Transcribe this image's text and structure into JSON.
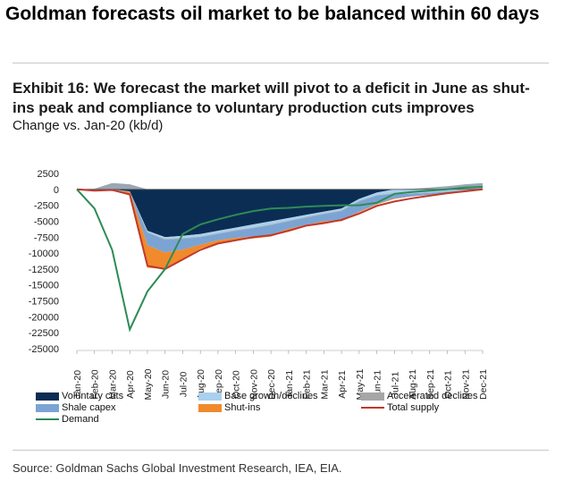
{
  "headline": "Goldman forecasts oil market to be balanced within 60 days",
  "exhibit_title": "Exhibit 16: We forecast the market will pivot to a deficit in June as shut-ins peak and compliance to voluntary production cuts improves",
  "exhibit_subtitle": "Change vs. Jan-20 (kb/d)",
  "source": "Source: Goldman Sachs Global Investment Research, IEA, EIA.",
  "legend": {
    "voluntary_cuts": "Voluntary cuts",
    "base_growth": "Base growth/declines",
    "accelerated_declines": "Accelerated declines",
    "shale_capex": "Shale capex",
    "shut_ins": "Shut-ins",
    "total_supply": "Total supply",
    "demand": "Demand"
  },
  "colors": {
    "voluntary_cuts": "#0b2d54",
    "base_growth": "#a9d0ee",
    "accelerated_declines": "#a6a6a6",
    "shale_capex": "#7ba4d4",
    "shut_ins": "#f08a2c",
    "total_supply": "#c0392b",
    "demand": "#2e8b57"
  },
  "chart_data": {
    "type": "area",
    "title": "Exhibit 16: We forecast the market will pivot to a deficit in June as shut-ins peak and compliance to voluntary production cuts improves",
    "ylabel": "Change vs. Jan-20 (kb/d)",
    "ylim": [
      -25000,
      2500
    ],
    "yticks": [
      2500,
      0,
      -2500,
      -5000,
      -7500,
      -10000,
      -12500,
      -15000,
      -17500,
      -20000,
      -22500,
      -25000
    ],
    "categories": [
      "Jan-20",
      "Feb-20",
      "Mar-20",
      "Apr-20",
      "May-20",
      "Jun-20",
      "Jul-20",
      "Aug-20",
      "Sep-20",
      "Oct-20",
      "Nov-20",
      "Dec-20",
      "Jan-21",
      "Feb-21",
      "Mar-21",
      "Apr-21",
      "May-21",
      "Jun-21",
      "Jul-21",
      "Aug-21",
      "Sep-21",
      "Oct-21",
      "Nov-21",
      "Dec-21"
    ],
    "stacked_series": [
      {
        "name": "Voluntary cuts",
        "values": [
          0,
          0,
          0,
          -300,
          -6500,
          -7500,
          -7300,
          -7000,
          -6500,
          -6000,
          -5500,
          -5000,
          -4500,
          -4000,
          -3500,
          -3000,
          -1500,
          -500,
          0,
          0,
          0,
          0,
          0,
          0
        ]
      },
      {
        "name": "Base growth/declines",
        "values": [
          0,
          0,
          0,
          0,
          -200,
          -300,
          -350,
          -400,
          -400,
          -400,
          -500,
          -500,
          -400,
          -350,
          -300,
          -300,
          -300,
          -400,
          -600,
          -600,
          -500,
          -300,
          -200,
          0
        ]
      },
      {
        "name": "Accelerated declines",
        "values": [
          0,
          -200,
          -100,
          -100,
          -100,
          -100,
          -100,
          -100,
          -100,
          -100,
          -100,
          -100,
          -100,
          -100,
          -100,
          -100,
          -100,
          -100,
          -100,
          -100,
          -50,
          -50,
          0,
          0
        ]
      },
      {
        "name": "Shale capex",
        "values": [
          0,
          0,
          0,
          0,
          -2000,
          -2000,
          -1700,
          -1200,
          -1000,
          -1100,
          -1300,
          -1500,
          -1200,
          -1100,
          -1100,
          -1400,
          -1600,
          -1300,
          -700,
          -400,
          -300,
          -200,
          -100,
          0
        ]
      },
      {
        "name": "Shut-ins",
        "values": [
          0,
          0,
          0,
          -500,
          -3500,
          -2600,
          -1500,
          -600,
          -500,
          -400,
          -300,
          -300,
          -300,
          -200,
          -200,
          -200,
          -100,
          -100,
          -100,
          0,
          0,
          0,
          0,
          0
        ]
      }
    ],
    "positive_series": {
      "name": "Accelerated declines (positive)",
      "values": [
        0,
        100,
        1000,
        800,
        0,
        0,
        0,
        0,
        0,
        0,
        0,
        0,
        0,
        0,
        0,
        0,
        0,
        0,
        0,
        100,
        300,
        500,
        800,
        1000
      ]
    },
    "series": [
      {
        "name": "Total supply",
        "values": [
          0,
          -200,
          -100,
          -800,
          -12000,
          -12500,
          -11000,
          -9500,
          -8500,
          -8000,
          -7500,
          -7200,
          -6500,
          -5700,
          -5300,
          -4800,
          -3800,
          -2600,
          -1900,
          -1400,
          -1000,
          -600,
          -300,
          0
        ]
      },
      {
        "name": "Demand",
        "values": [
          0,
          -3000,
          -9500,
          -22000,
          -16000,
          -12500,
          -7000,
          -5500,
          -4700,
          -4000,
          -3400,
          -3000,
          -2900,
          -2700,
          -2600,
          -2500,
          -2500,
          -2100,
          -700,
          -400,
          -200,
          0,
          300,
          400
        ]
      }
    ],
    "grid": false,
    "legend_position": "bottom"
  }
}
